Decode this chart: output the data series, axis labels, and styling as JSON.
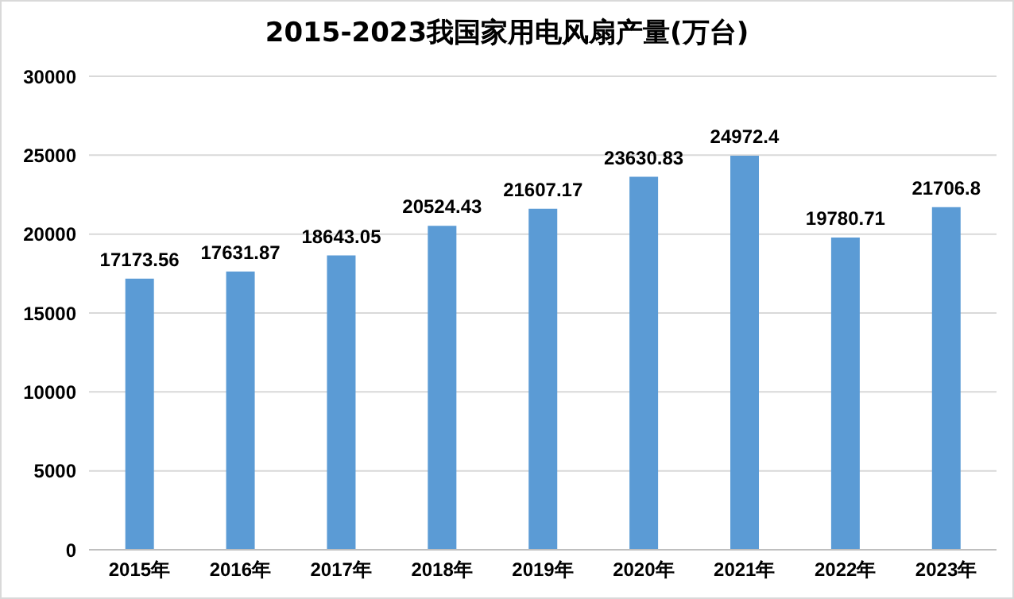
{
  "chart_data": {
    "type": "bar",
    "title": "2015-2023我国家用电风扇产量(万台)",
    "categories": [
      "2015年",
      "2016年",
      "2017年",
      "2018年",
      "2019年",
      "2020年",
      "2021年",
      "2022年",
      "2023年"
    ],
    "values": [
      17173.56,
      17631.87,
      18643.05,
      20524.43,
      21607.17,
      23630.83,
      24972.4,
      19780.71,
      21706.8
    ],
    "color": "#5b9bd5",
    "ylim": [
      0,
      30000
    ],
    "yticks": [
      0,
      5000,
      10000,
      15000,
      20000,
      25000,
      30000
    ],
    "grid": "y",
    "data_labels": true
  }
}
